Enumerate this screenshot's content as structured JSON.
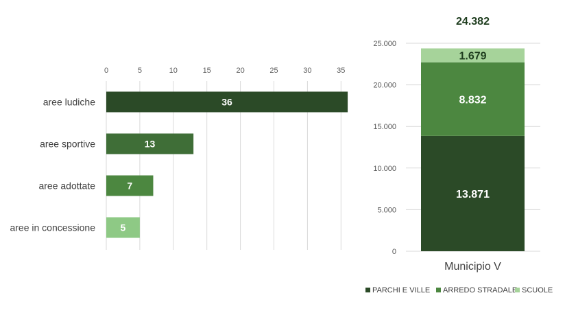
{
  "colors": {
    "parchi": "#2b4a27",
    "arredo": "#4c8740",
    "scuole": "#a6d39a",
    "bar_aree_ludiche": "#2b4a27",
    "bar_aree_sportive": "#3f6e37",
    "bar_aree_adottate": "#4c8740",
    "bar_aree_concessione": "#8ec985",
    "grid": "#d9d9d9"
  },
  "chart_data": [
    {
      "type": "bar",
      "orientation": "horizontal",
      "categories": [
        "aree ludiche",
        "aree sportive",
        "aree adottate",
        "aree in concessione"
      ],
      "values": [
        36,
        13,
        7,
        5
      ],
      "value_labels": [
        "36",
        "13",
        "7",
        "5"
      ],
      "xlim": [
        0,
        35
      ],
      "xticks": [
        "0",
        "5",
        "10",
        "15",
        "20",
        "25",
        "30",
        "35"
      ],
      "xaxis_position": "top",
      "grid": true,
      "legend": "none"
    },
    {
      "type": "bar",
      "stacked": true,
      "categories": [
        "Municipio V"
      ],
      "series": [
        {
          "name": "PARCHI E VILLE",
          "values": [
            13871
          ],
          "label": "13.871"
        },
        {
          "name": "ARREDO STRADALE",
          "values": [
            8832
          ],
          "label": "8.832"
        },
        {
          "name": "SCUOLE",
          "values": [
            1679
          ],
          "label": "1.679"
        }
      ],
      "total": 24382,
      "total_label": "24.382",
      "ylim": [
        0,
        25000
      ],
      "yticks": [
        "0",
        "5.000",
        "10.000",
        "15.000",
        "20.000",
        "25.000"
      ],
      "grid": true,
      "legend": "bottom"
    }
  ]
}
